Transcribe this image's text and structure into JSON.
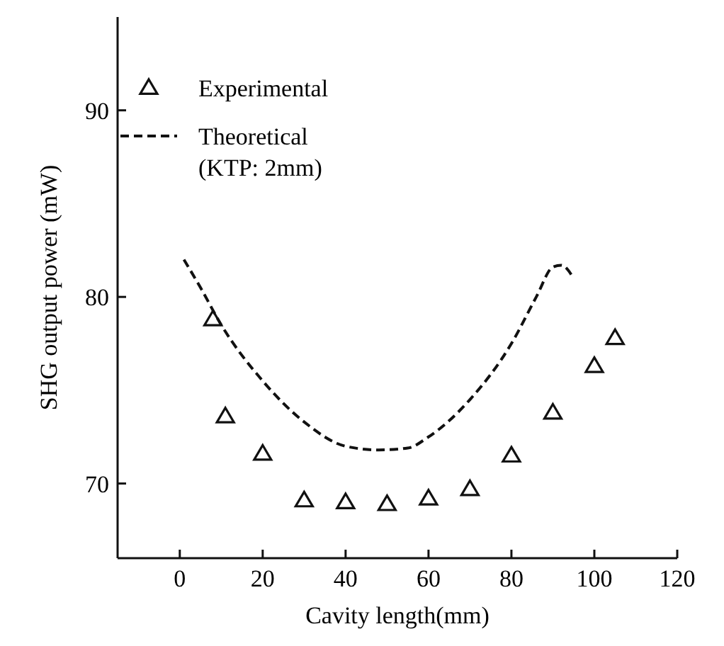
{
  "chart_data": {
    "type": "scatter",
    "xlabel": "Cavity length(mm)",
    "ylabel": "SHG output power (mW)",
    "xlim": [
      -15,
      120
    ],
    "ylim": [
      66,
      95
    ],
    "xticks": [
      0,
      20,
      40,
      60,
      80,
      100,
      120
    ],
    "yticks": [
      70,
      80,
      90
    ],
    "grid": false,
    "legend": "top left",
    "series": [
      {
        "name": "Experimental",
        "marker": "triangle",
        "color": "#111111",
        "x": [
          8,
          11,
          20,
          30,
          40,
          50,
          60,
          70,
          80,
          90,
          100,
          105
        ],
        "values": [
          78.8,
          73.6,
          71.6,
          69.1,
          69.0,
          68.9,
          69.2,
          69.7,
          71.5,
          73.8,
          76.3,
          77.8
        ]
      },
      {
        "name": "Theoretical\n(KTP: 2mm)",
        "type": "line",
        "line_style": "dashed",
        "marker": "none",
        "color": "#111111",
        "x": [
          1,
          5,
          10,
          20,
          30,
          40,
          48,
          55,
          60,
          70,
          80,
          86,
          90,
          92,
          95
        ],
        "values": [
          82,
          80.5,
          78.5,
          75.5,
          73.3,
          72.0,
          71.8,
          71.9,
          72.5,
          74.5,
          77.5,
          80,
          81.6,
          81.7,
          81
        ]
      }
    ]
  }
}
